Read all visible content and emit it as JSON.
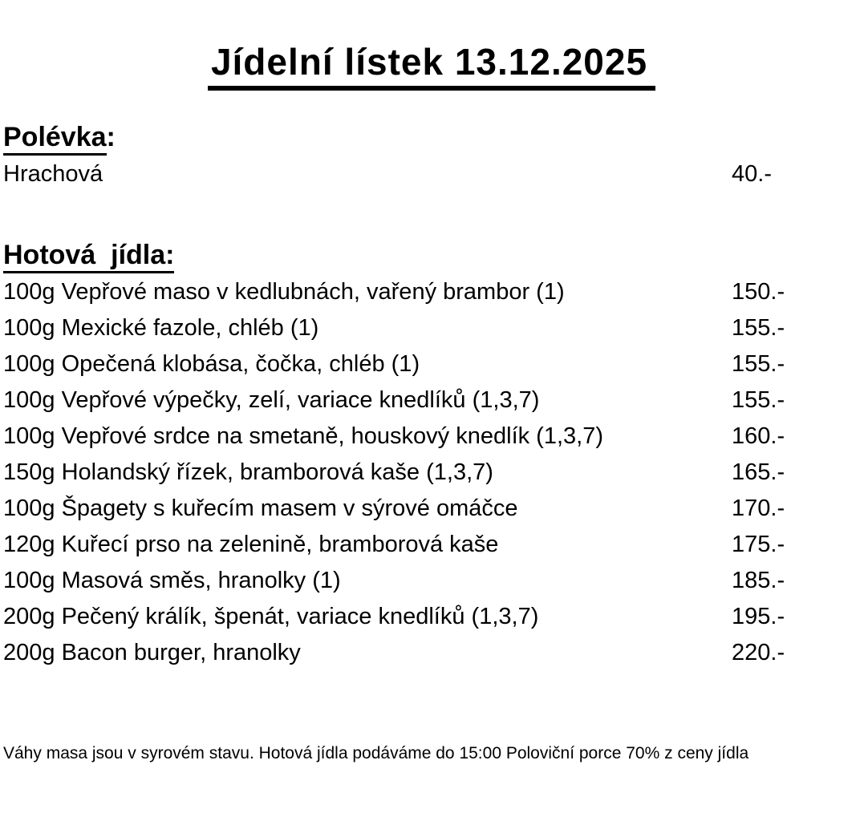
{
  "title": "Jídelní lístek 13.12.2025",
  "sections": {
    "soup": {
      "heading": "Polévka",
      "colon": ":",
      "items": [
        {
          "quantity": "",
          "name": "Hrachová",
          "price": "40.-"
        }
      ]
    },
    "mains": {
      "heading": "Hotová  jídla:",
      "items": [
        {
          "quantity": "100g",
          "name": "Vepřové maso v kedlubnách, vařený brambor (1)",
          "price": "150.-"
        },
        {
          "quantity": "100g",
          "name": "Mexické fazole, chléb (1)",
          "price": "155.-"
        },
        {
          "quantity": "100g",
          "name": "Opečená klobása, čočka, chléb (1)",
          "price": "155.-"
        },
        {
          "quantity": "100g",
          "name": "Vepřové výpečky, zelí, variace knedlíků (1,3,7)",
          "price": "155.-"
        },
        {
          "quantity": "100g",
          "name": "Vepřové srdce na smetaně, houskový knedlík (1,3,7)",
          "price": "160.-"
        },
        {
          "quantity": "150g",
          "name": "Holandský řízek, bramborová kaše (1,3,7)",
          "price": "165.-"
        },
        {
          "quantity": "100g",
          "name": "Špagety s kuřecím masem v sýrové omáčce",
          "price": "170.-"
        },
        {
          "quantity": "120g",
          "name": "Kuřecí prso na zelenině, bramborová kaše",
          "price": "175.-"
        },
        {
          "quantity": "100g",
          "name": "Masová směs, hranolky (1)",
          "price": "185.-"
        },
        {
          "quantity": "200g",
          "name": "Pečený králík, špenát, variace knedlíků (1,3,7)",
          "price": "195.-"
        },
        {
          "quantity": "200g",
          "name": "Bacon burger, hranolky",
          "price": "220.-"
        }
      ]
    }
  },
  "footer_note": "Váhy masa jsou v syrovém stavu. Hotová jídla podáváme do 15:00 Poloviční porce 70% z ceny jídla",
  "colors": {
    "text": "#000000",
    "background": "#ffffff"
  }
}
